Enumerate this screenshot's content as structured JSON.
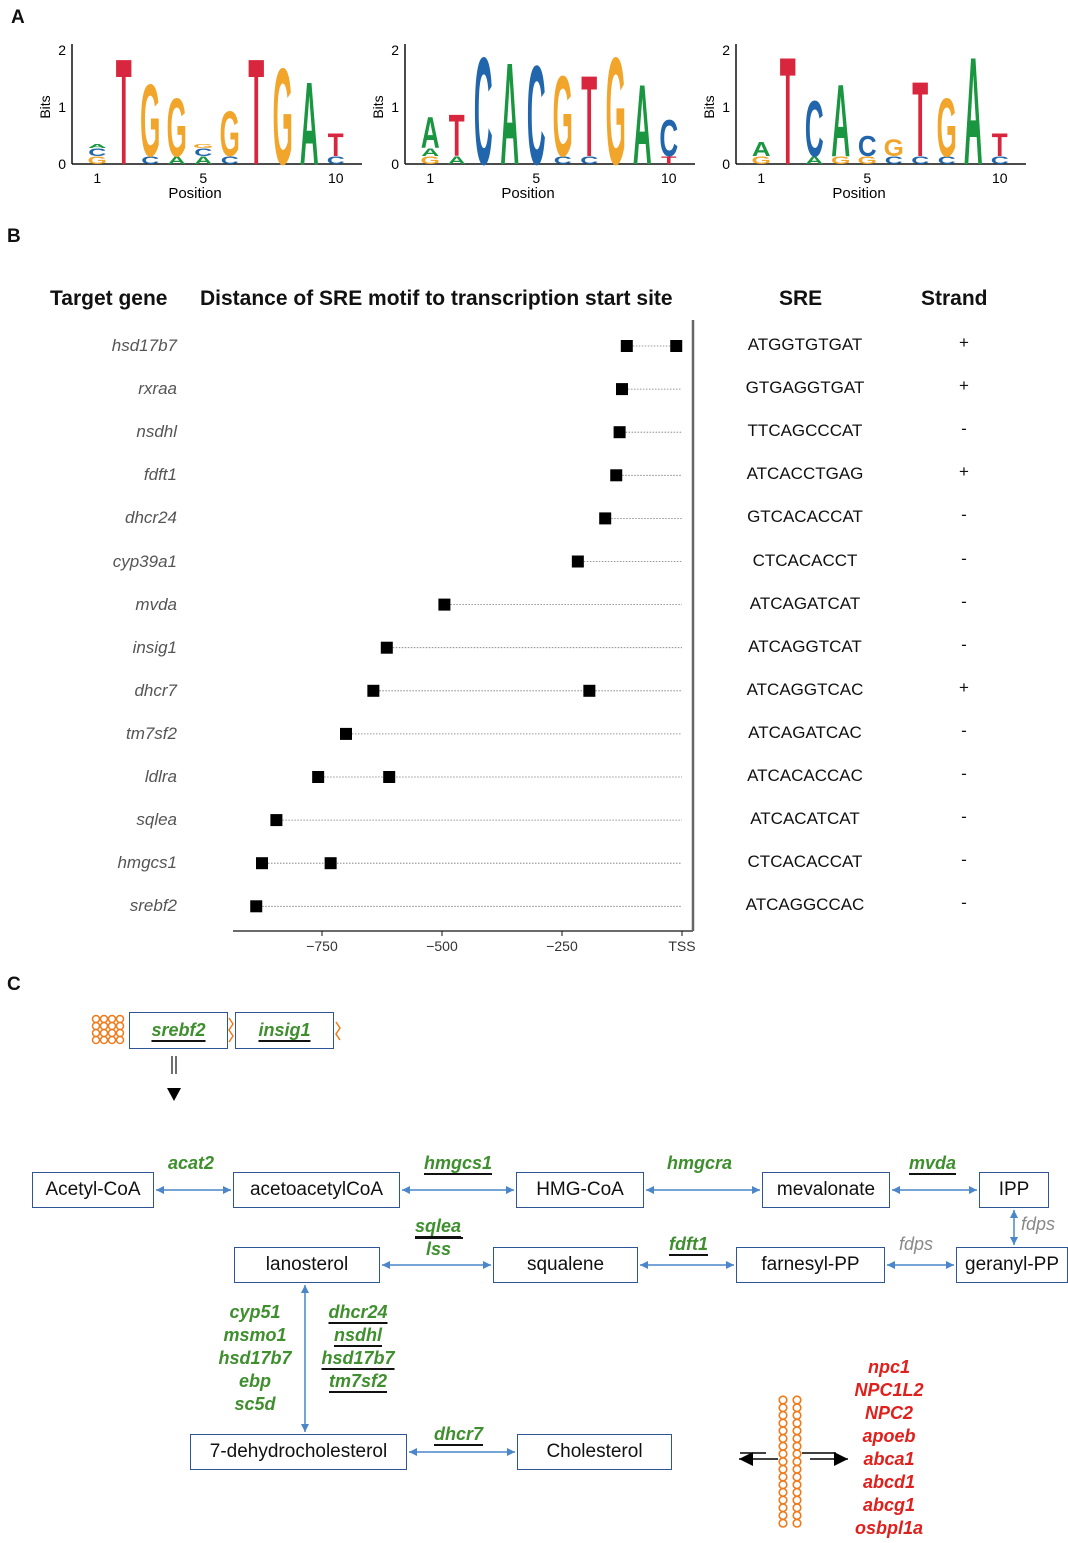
{
  "panels": {
    "a": "A",
    "b": "B",
    "c": "C"
  },
  "logos": {
    "ylabel": "Bits",
    "xlabel": "Position",
    "y_ticks": [
      "0",
      "1",
      "2"
    ],
    "x_ticks": [
      "1",
      "5",
      "10"
    ],
    "colors": {
      "A": "#1a9640",
      "C": "#2166ac",
      "G": "#f2a52b",
      "T": "#d7263d"
    },
    "motifs": [
      {
        "letters": [
          {
            "top": "A",
            "h": 0.35,
            "under": [
              "G",
              "C"
            ]
          },
          {
            "top": "T",
            "h": 1.92,
            "under": []
          },
          {
            "top": "G",
            "h": 1.45,
            "under": [
              "C"
            ]
          },
          {
            "top": "G",
            "h": 1.2,
            "under": [
              "A"
            ]
          },
          {
            "top": "G",
            "h": 0.3,
            "under": [
              "A",
              "C"
            ]
          },
          {
            "top": "G",
            "h": 0.95,
            "under": [
              "C"
            ]
          },
          {
            "top": "T",
            "h": 1.92,
            "under": []
          },
          {
            "top": "G",
            "h": 1.75,
            "under": []
          },
          {
            "top": "A",
            "h": 1.5,
            "under": []
          },
          {
            "top": "T",
            "h": 0.55,
            "under": [
              "C"
            ]
          }
        ]
      },
      {
        "letters": [
          {
            "top": "A",
            "h": 0.85,
            "under": [
              "G",
              "A"
            ]
          },
          {
            "top": "T",
            "h": 0.9,
            "under": [
              "A"
            ]
          },
          {
            "top": "C",
            "h": 1.95,
            "under": []
          },
          {
            "top": "A",
            "h": 1.85,
            "under": []
          },
          {
            "top": "C",
            "h": 1.8,
            "under": []
          },
          {
            "top": "G",
            "h": 1.6,
            "under": [
              "C"
            ]
          },
          {
            "top": "T",
            "h": 1.6,
            "under": [
              "C"
            ]
          },
          {
            "top": "G",
            "h": 1.95,
            "under": []
          },
          {
            "top": "A",
            "h": 1.45,
            "under": []
          },
          {
            "top": "C",
            "h": 0.8,
            "under": [
              "T"
            ]
          }
        ]
      },
      {
        "letters": [
          {
            "top": "A",
            "h": 0.4,
            "under": [
              "G"
            ]
          },
          {
            "top": "T",
            "h": 1.95,
            "under": []
          },
          {
            "top": "C",
            "h": 1.15,
            "under": [
              "A"
            ]
          },
          {
            "top": "A",
            "h": 1.45,
            "under": [
              "G"
            ]
          },
          {
            "top": "C",
            "h": 0.5,
            "under": [
              "G"
            ]
          },
          {
            "top": "G",
            "h": 0.45,
            "under": [
              "C"
            ]
          },
          {
            "top": "T",
            "h": 1.5,
            "under": [
              "C"
            ]
          },
          {
            "top": "G",
            "h": 1.2,
            "under": [
              "C"
            ]
          },
          {
            "top": "A",
            "h": 1.95,
            "under": []
          },
          {
            "top": "T",
            "h": 0.55,
            "under": [
              "C"
            ]
          }
        ]
      }
    ]
  },
  "table": {
    "headers": {
      "gene": "Target gene",
      "distance": "Distance of SRE motif to transcription start site",
      "sre": "SRE",
      "strand": "Strand"
    },
    "rows": [
      {
        "gene": "hsd17b7",
        "sre": "ATGGTGTGAT",
        "strand": "+"
      },
      {
        "gene": "rxraa",
        "sre": "GTGAGGTGAT",
        "strand": "+"
      },
      {
        "gene": "nsdhl",
        "sre": "TTCAGCCCAT",
        "strand": "-"
      },
      {
        "gene": "fdft1",
        "sre": "ATCACCTGAG",
        "strand": "+"
      },
      {
        "gene": "dhcr24",
        "sre": "GTCACACCAT",
        "strand": "-"
      },
      {
        "gene": "cyp39a1",
        "sre": "CTCACACCT",
        "strand": "-"
      },
      {
        "gene": "mvda",
        "sre": "ATCAGATCAT",
        "strand": "-"
      },
      {
        "gene": "insig1",
        "sre": "ATCAGGTCAT",
        "strand": "-"
      },
      {
        "gene": "dhcr7",
        "sre": "ATCAGGTCAC",
        "strand": "+"
      },
      {
        "gene": "tm7sf2",
        "sre": "ATCAGATCAC",
        "strand": "-"
      },
      {
        "gene": "ldlra",
        "sre": "ATCACACCAC",
        "strand": "-"
      },
      {
        "gene": "sqlea",
        "sre": "ATCACATCAT",
        "strand": "-"
      },
      {
        "gene": "hmgcs1",
        "sre": "CTCACACCAT",
        "strand": "-"
      },
      {
        "gene": "srebf2",
        "sre": "ATCAGGCCAC",
        "strand": "-"
      }
    ]
  },
  "chart_data": {
    "type": "scatter",
    "xlabel": "",
    "ylabel": "",
    "xlim": [
      -935,
      0
    ],
    "x_ticks": [
      "-750",
      "-500",
      "-250",
      "TSS"
    ],
    "x_tick_values": [
      -750,
      -500,
      -250,
      0
    ],
    "categories": [
      "hsd17b7",
      "rxraa",
      "nsdhl",
      "fdft1",
      "dhcr24",
      "cyp39a1",
      "mvda",
      "insig1",
      "dhcr7",
      "tm7sf2",
      "ldlra",
      "sqlea",
      "hmgcs1",
      "srebf2"
    ],
    "points": [
      {
        "gene": "hsd17b7",
        "x": [
          -115,
          -12
        ]
      },
      {
        "gene": "rxraa",
        "x": [
          -125
        ]
      },
      {
        "gene": "nsdhl",
        "x": [
          -130
        ]
      },
      {
        "gene": "fdft1",
        "x": [
          -137
        ]
      },
      {
        "gene": "dhcr24",
        "x": [
          -160
        ]
      },
      {
        "gene": "cyp39a1",
        "x": [
          -217
        ]
      },
      {
        "gene": "mvda",
        "x": [
          -495
        ]
      },
      {
        "gene": "insig1",
        "x": [
          -615
        ]
      },
      {
        "gene": "dhcr7",
        "x": [
          -643,
          -193
        ]
      },
      {
        "gene": "tm7sf2",
        "x": [
          -700
        ]
      },
      {
        "gene": "ldlra",
        "x": [
          -758,
          -610
        ]
      },
      {
        "gene": "sqlea",
        "x": [
          -845
        ]
      },
      {
        "gene": "hmgcs1",
        "x": [
          -875,
          -732
        ]
      },
      {
        "gene": "srebf2",
        "x": [
          -887
        ]
      }
    ]
  },
  "pathway": {
    "membrane_genes": [
      "srebf2",
      "insig1"
    ],
    "nodes": {
      "acetylcoa": "Acetyl-CoA",
      "acetoacetylcoa": "acetoacetylCoA",
      "hmgcoa": "HMG-CoA",
      "mevalonate": "mevalonate",
      "ipp": "IPP",
      "geranylpp": "geranyl-PP",
      "farnesylpp": "farnesyl-PP",
      "squalene": "squalene",
      "lanosterol": "lanosterol",
      "dhc": "7-dehydrocholesterol",
      "cholesterol": "Cholesterol"
    },
    "enzymes": {
      "acat2": "acat2",
      "hmgcs1": "hmgcs1",
      "hmgcra": "hmgcra",
      "mvda": "mvda",
      "fdps_v": "fdps",
      "fdps_h": "fdps",
      "fdft1": "fdft1",
      "sqlea": "sqlea",
      "lss": "lss",
      "left": [
        "cyp51",
        "msmo1",
        "hsd17b7",
        "ebp",
        "sc5d"
      ],
      "right": [
        "dhcr24",
        "nsdhl",
        "hsd17b7",
        "tm7sf2"
      ],
      "dhcr7": "dhcr7"
    },
    "transport": [
      "npc1",
      "NPC1L2",
      "NPC2",
      "apoeb",
      "abca1",
      "abcd1",
      "abcg1",
      "osbpl1a"
    ]
  }
}
